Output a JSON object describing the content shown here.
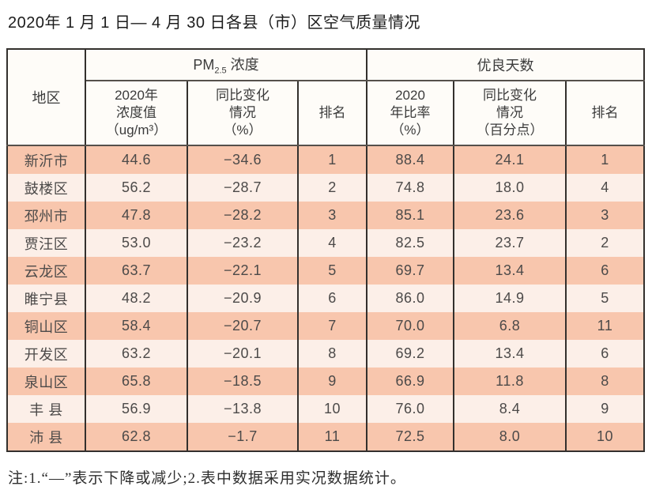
{
  "title": "2020年 1 月 1 日— 4 月 30 日各县（市）区空气质量情况",
  "table": {
    "region_header": "地区",
    "pm_group": {
      "prefix": "PM",
      "sub": "2.5",
      "suffix": " 浓度"
    },
    "days_group": "优良天数",
    "sub_headers": {
      "pm_value": "2020年\n浓度值\n（ug/m³）",
      "pm_change": "同比变化\n情况\n（%）",
      "pm_rank": "排名",
      "days_rate": "2020\n年比率\n（%）",
      "days_change": "同比变化\n情况\n（百分点）",
      "days_rank": "排名"
    },
    "rows": [
      {
        "region": "新沂市",
        "pm_value": "44.6",
        "pm_change": "−34.6",
        "pm_rank": "1",
        "days_rate": "88.4",
        "days_change": "24.1",
        "days_rank": "1"
      },
      {
        "region": "鼓楼区",
        "pm_value": "56.2",
        "pm_change": "−28.7",
        "pm_rank": "2",
        "days_rate": "74.8",
        "days_change": "18.0",
        "days_rank": "4"
      },
      {
        "region": "邳州市",
        "pm_value": "47.8",
        "pm_change": "−28.2",
        "pm_rank": "3",
        "days_rate": "85.1",
        "days_change": "23.6",
        "days_rank": "3"
      },
      {
        "region": "贾汪区",
        "pm_value": "53.0",
        "pm_change": "−23.2",
        "pm_rank": "4",
        "days_rate": "82.5",
        "days_change": "23.7",
        "days_rank": "2"
      },
      {
        "region": "云龙区",
        "pm_value": "63.7",
        "pm_change": "−22.1",
        "pm_rank": "5",
        "days_rate": "69.7",
        "days_change": "13.4",
        "days_rank": "6"
      },
      {
        "region": "睢宁县",
        "pm_value": "48.2",
        "pm_change": "−20.9",
        "pm_rank": "6",
        "days_rate": "86.0",
        "days_change": "14.9",
        "days_rank": "5"
      },
      {
        "region": "铜山区",
        "pm_value": "58.4",
        "pm_change": "−20.7",
        "pm_rank": "7",
        "days_rate": "70.0",
        "days_change": "6.8",
        "days_rank": "11"
      },
      {
        "region": "开发区",
        "pm_value": "63.2",
        "pm_change": "−20.1",
        "pm_rank": "8",
        "days_rate": "69.2",
        "days_change": "13.4",
        "days_rank": "6"
      },
      {
        "region": "泉山区",
        "pm_value": "65.8",
        "pm_change": "−18.5",
        "pm_rank": "9",
        "days_rate": "66.9",
        "days_change": "11.8",
        "days_rank": "8"
      },
      {
        "region": "丰 县",
        "pm_value": "56.9",
        "pm_change": "−13.8",
        "pm_rank": "10",
        "days_rate": "76.0",
        "days_change": "8.4",
        "days_rank": "9"
      },
      {
        "region": "沛 县",
        "pm_value": "62.8",
        "pm_change": "−1.7",
        "pm_rank": "11",
        "days_rate": "72.5",
        "days_change": "8.0",
        "days_rank": "10"
      }
    ]
  },
  "note": "注:1.“—”表示下降或减少;2.表中数据采用实况数据统计。",
  "colors": {
    "row_dark": "#f8c6ad",
    "row_light": "#fcefe8",
    "border": "#33302d",
    "header_bg": "#fefcf8"
  },
  "chart_data": {
    "type": "table",
    "title": "2020年1月1日—4月30日各县（市）区空气质量情况",
    "columns": [
      "地区",
      "PM2.5浓度 2020年浓度值（ug/m³）",
      "PM2.5浓度 同比变化情况（%）",
      "PM2.5浓度 排名",
      "优良天数 2020年比率（%）",
      "优良天数 同比变化情况（百分点）",
      "优良天数 排名"
    ],
    "rows": [
      [
        "新沂市",
        44.6,
        -34.6,
        1,
        88.4,
        24.1,
        1
      ],
      [
        "鼓楼区",
        56.2,
        -28.7,
        2,
        74.8,
        18.0,
        4
      ],
      [
        "邳州市",
        47.8,
        -28.2,
        3,
        85.1,
        23.6,
        3
      ],
      [
        "贾汪区",
        53.0,
        -23.2,
        4,
        82.5,
        23.7,
        2
      ],
      [
        "云龙区",
        63.7,
        -22.1,
        5,
        69.7,
        13.4,
        6
      ],
      [
        "睢宁县",
        48.2,
        -20.9,
        6,
        86.0,
        14.9,
        5
      ],
      [
        "铜山区",
        58.4,
        -20.7,
        7,
        70.0,
        6.8,
        11
      ],
      [
        "开发区",
        63.2,
        -20.1,
        8,
        69.2,
        13.4,
        6
      ],
      [
        "泉山区",
        65.8,
        -18.5,
        9,
        66.9,
        11.8,
        8
      ],
      [
        "丰县",
        56.9,
        -13.8,
        10,
        76.0,
        8.4,
        9
      ],
      [
        "沛县",
        62.8,
        -1.7,
        11,
        72.5,
        8.0,
        10
      ]
    ],
    "note": "注:1.“—”表示下降或减少;2.表中数据采用实况数据统计。"
  }
}
